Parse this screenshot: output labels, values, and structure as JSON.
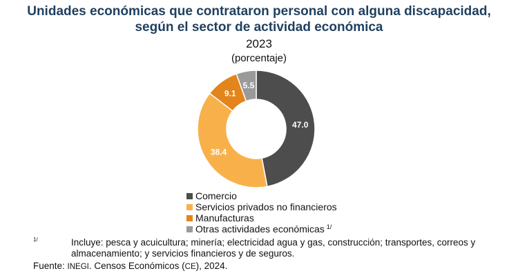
{
  "title_line1": "Unidades económicas que contrataron personal con alguna discapacidad,",
  "title_line2": "según el sector de actividad económica",
  "year": "2023",
  "unit": "(porcentaje)",
  "chart_data": {
    "type": "pie",
    "variant": "donut",
    "title": "Unidades económicas que contrataron personal con alguna discapacidad, según el sector de actividad económica",
    "subtitle": "2023 (porcentaje)",
    "categories": [
      "Comercio",
      "Servicios privados no financieros",
      "Manufacturas",
      "Otras actividades económicas"
    ],
    "values": [
      47.0,
      38.4,
      9.1,
      5.5
    ],
    "value_labels": [
      "47.0",
      "38.4",
      "9.1",
      "5.5"
    ],
    "colors": [
      "#4d4d4d",
      "#f8b14a",
      "#e3851a",
      "#9a9a9a"
    ],
    "legend_position": "bottom"
  },
  "legend": [
    {
      "label": "Comercio",
      "color": "#4d4d4d",
      "sup": ""
    },
    {
      "label": "Servicios privados no financieros",
      "color": "#f8b14a",
      "sup": ""
    },
    {
      "label": "Manufacturas",
      "color": "#e3851a",
      "sup": ""
    },
    {
      "label": "Otras actividades económicas",
      "color": "#9a9a9a",
      "sup": "1/"
    }
  ],
  "footnote": {
    "mark": "1/",
    "text": "Incluye: pesca y acuicultura; minería; electricidad agua y gas, construcción; transportes, correos y almacenamiento; y servicios financieros y de seguros."
  },
  "source": {
    "prefix": "Fuente: ",
    "org": "INEGI",
    "mid": ". Censos Económicos (",
    "abbr": "CE",
    "suffix": "), 2024."
  }
}
